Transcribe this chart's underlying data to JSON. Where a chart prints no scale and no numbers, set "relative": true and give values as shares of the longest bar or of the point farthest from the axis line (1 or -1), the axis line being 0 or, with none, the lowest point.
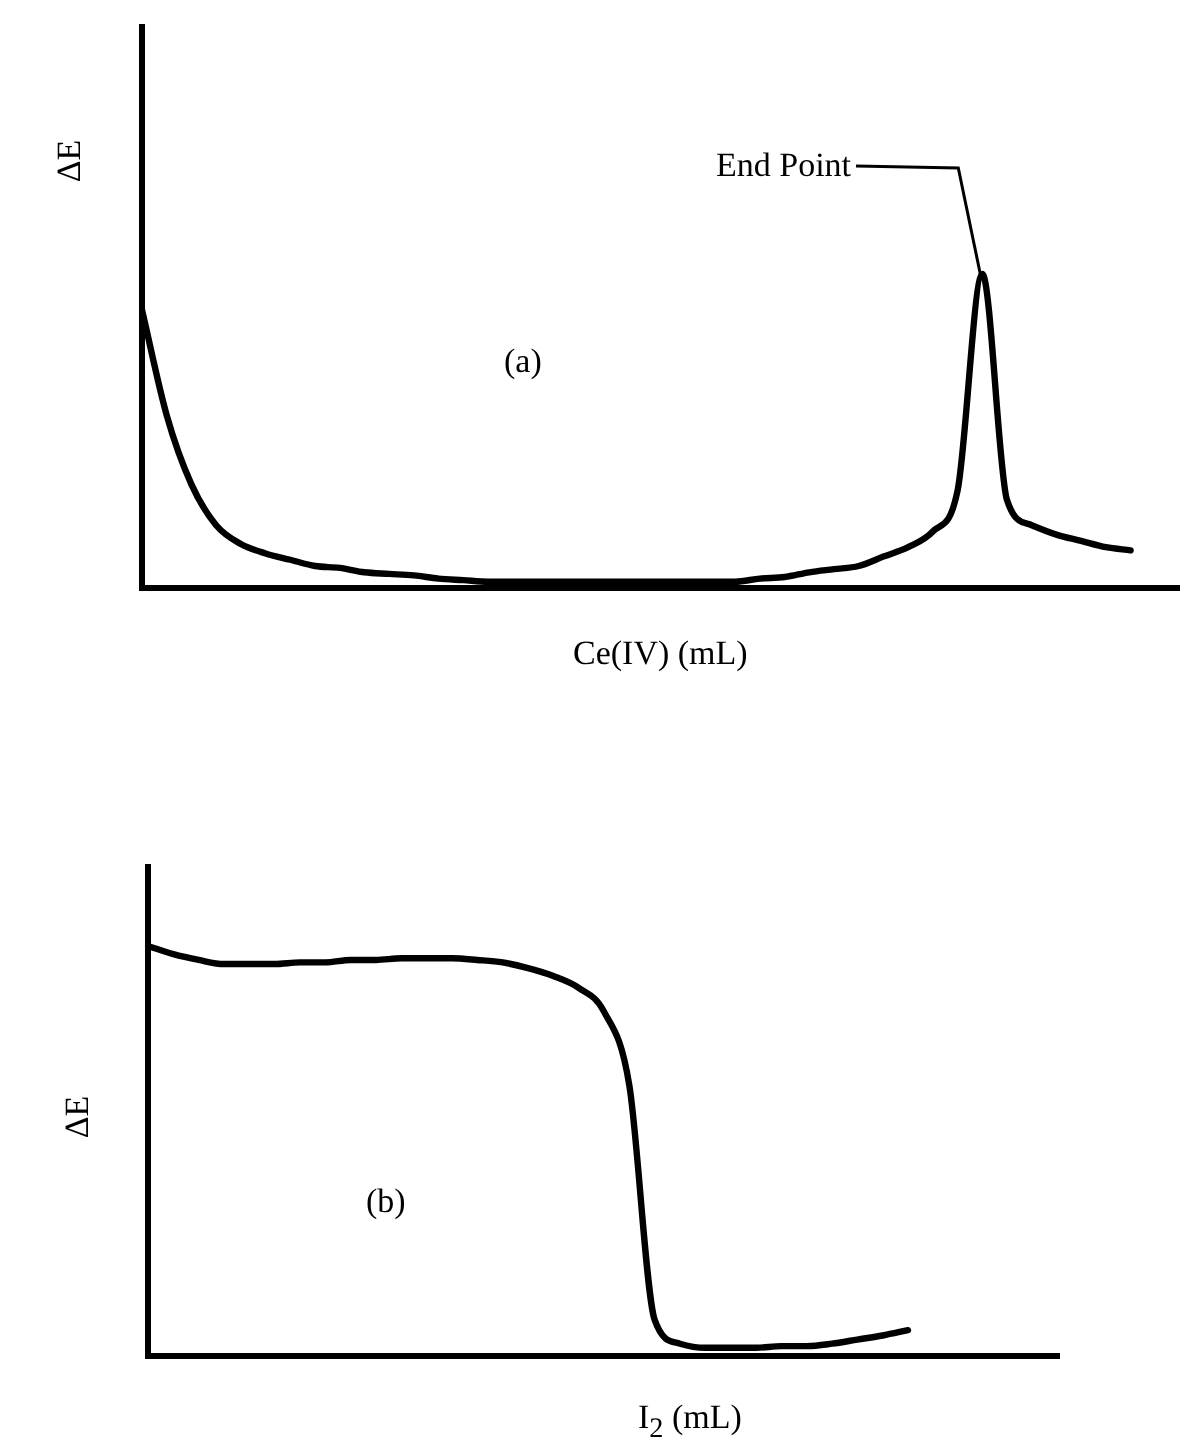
{
  "chart_data": [
    {
      "type": "line",
      "relative": true,
      "xlabel": "Ce(IV) (mL)",
      "ylabel": "ΔE",
      "annotations": [
        "(a)",
        "End Point"
      ],
      "marker": "none",
      "line_style": "solid",
      "categories": [
        null,
        null,
        null,
        null,
        null,
        null,
        null,
        null,
        null,
        null,
        null,
        null,
        null,
        null,
        null,
        null,
        null,
        null,
        null,
        null,
        null,
        null,
        null,
        null,
        null,
        null,
        null,
        null,
        null,
        null,
        null,
        null,
        null,
        null,
        null,
        null,
        null,
        null,
        null,
        null,
        null,
        null,
        null
      ],
      "series": [
        {
          "color": "#000000",
          "values": [
            0.885,
            0.55,
            0.33,
            0.2,
            0.14,
            0.11,
            0.09,
            0.07,
            0.064,
            0.05,
            0.045,
            0.04,
            0.03,
            0.025,
            0.02,
            0.02,
            0.02,
            0.02,
            0.02,
            0.02,
            0.02,
            0.02,
            0.02,
            0.02,
            0.02,
            0.03,
            0.035,
            0.05,
            0.06,
            0.07,
            0.1,
            0.13,
            0.18,
            0.31,
            1,
            0.28,
            0.2,
            0.17,
            0.15,
            0.13,
            0.12,
            null,
            null
          ]
        }
      ]
    },
    {
      "type": "line",
      "relative": true,
      "xlabel": "I$_{2}$ (mL)",
      "ylabel": "ΔE",
      "annotations": [
        "(b)"
      ],
      "marker": "none",
      "line_style": "solid",
      "categories": [
        null,
        null,
        null,
        null,
        null,
        null,
        null,
        null,
        null,
        null,
        null,
        null,
        null,
        null,
        null,
        null,
        null,
        null,
        null,
        null,
        null,
        null,
        null,
        null,
        null,
        null,
        null,
        null,
        null,
        null,
        null,
        null,
        null,
        null,
        null,
        null,
        null
      ],
      "series": [
        {
          "color": "#000000",
          "values": [
            1,
            0.98,
            0.966,
            0.956,
            0.956,
            0.956,
            0.96,
            0.96,
            0.966,
            0.966,
            0.97,
            0.97,
            0.97,
            0.966,
            0.96,
            0.946,
            0.927,
            0.898,
            0.84,
            0.66,
            0.088,
            0.03,
            0.02,
            0.02,
            0.02,
            0.024,
            0.024,
            0.03,
            0.04,
            0.05,
            0.063,
            null,
            null,
            null,
            null,
            null,
            null
          ]
        }
      ]
    }
  ]
}
